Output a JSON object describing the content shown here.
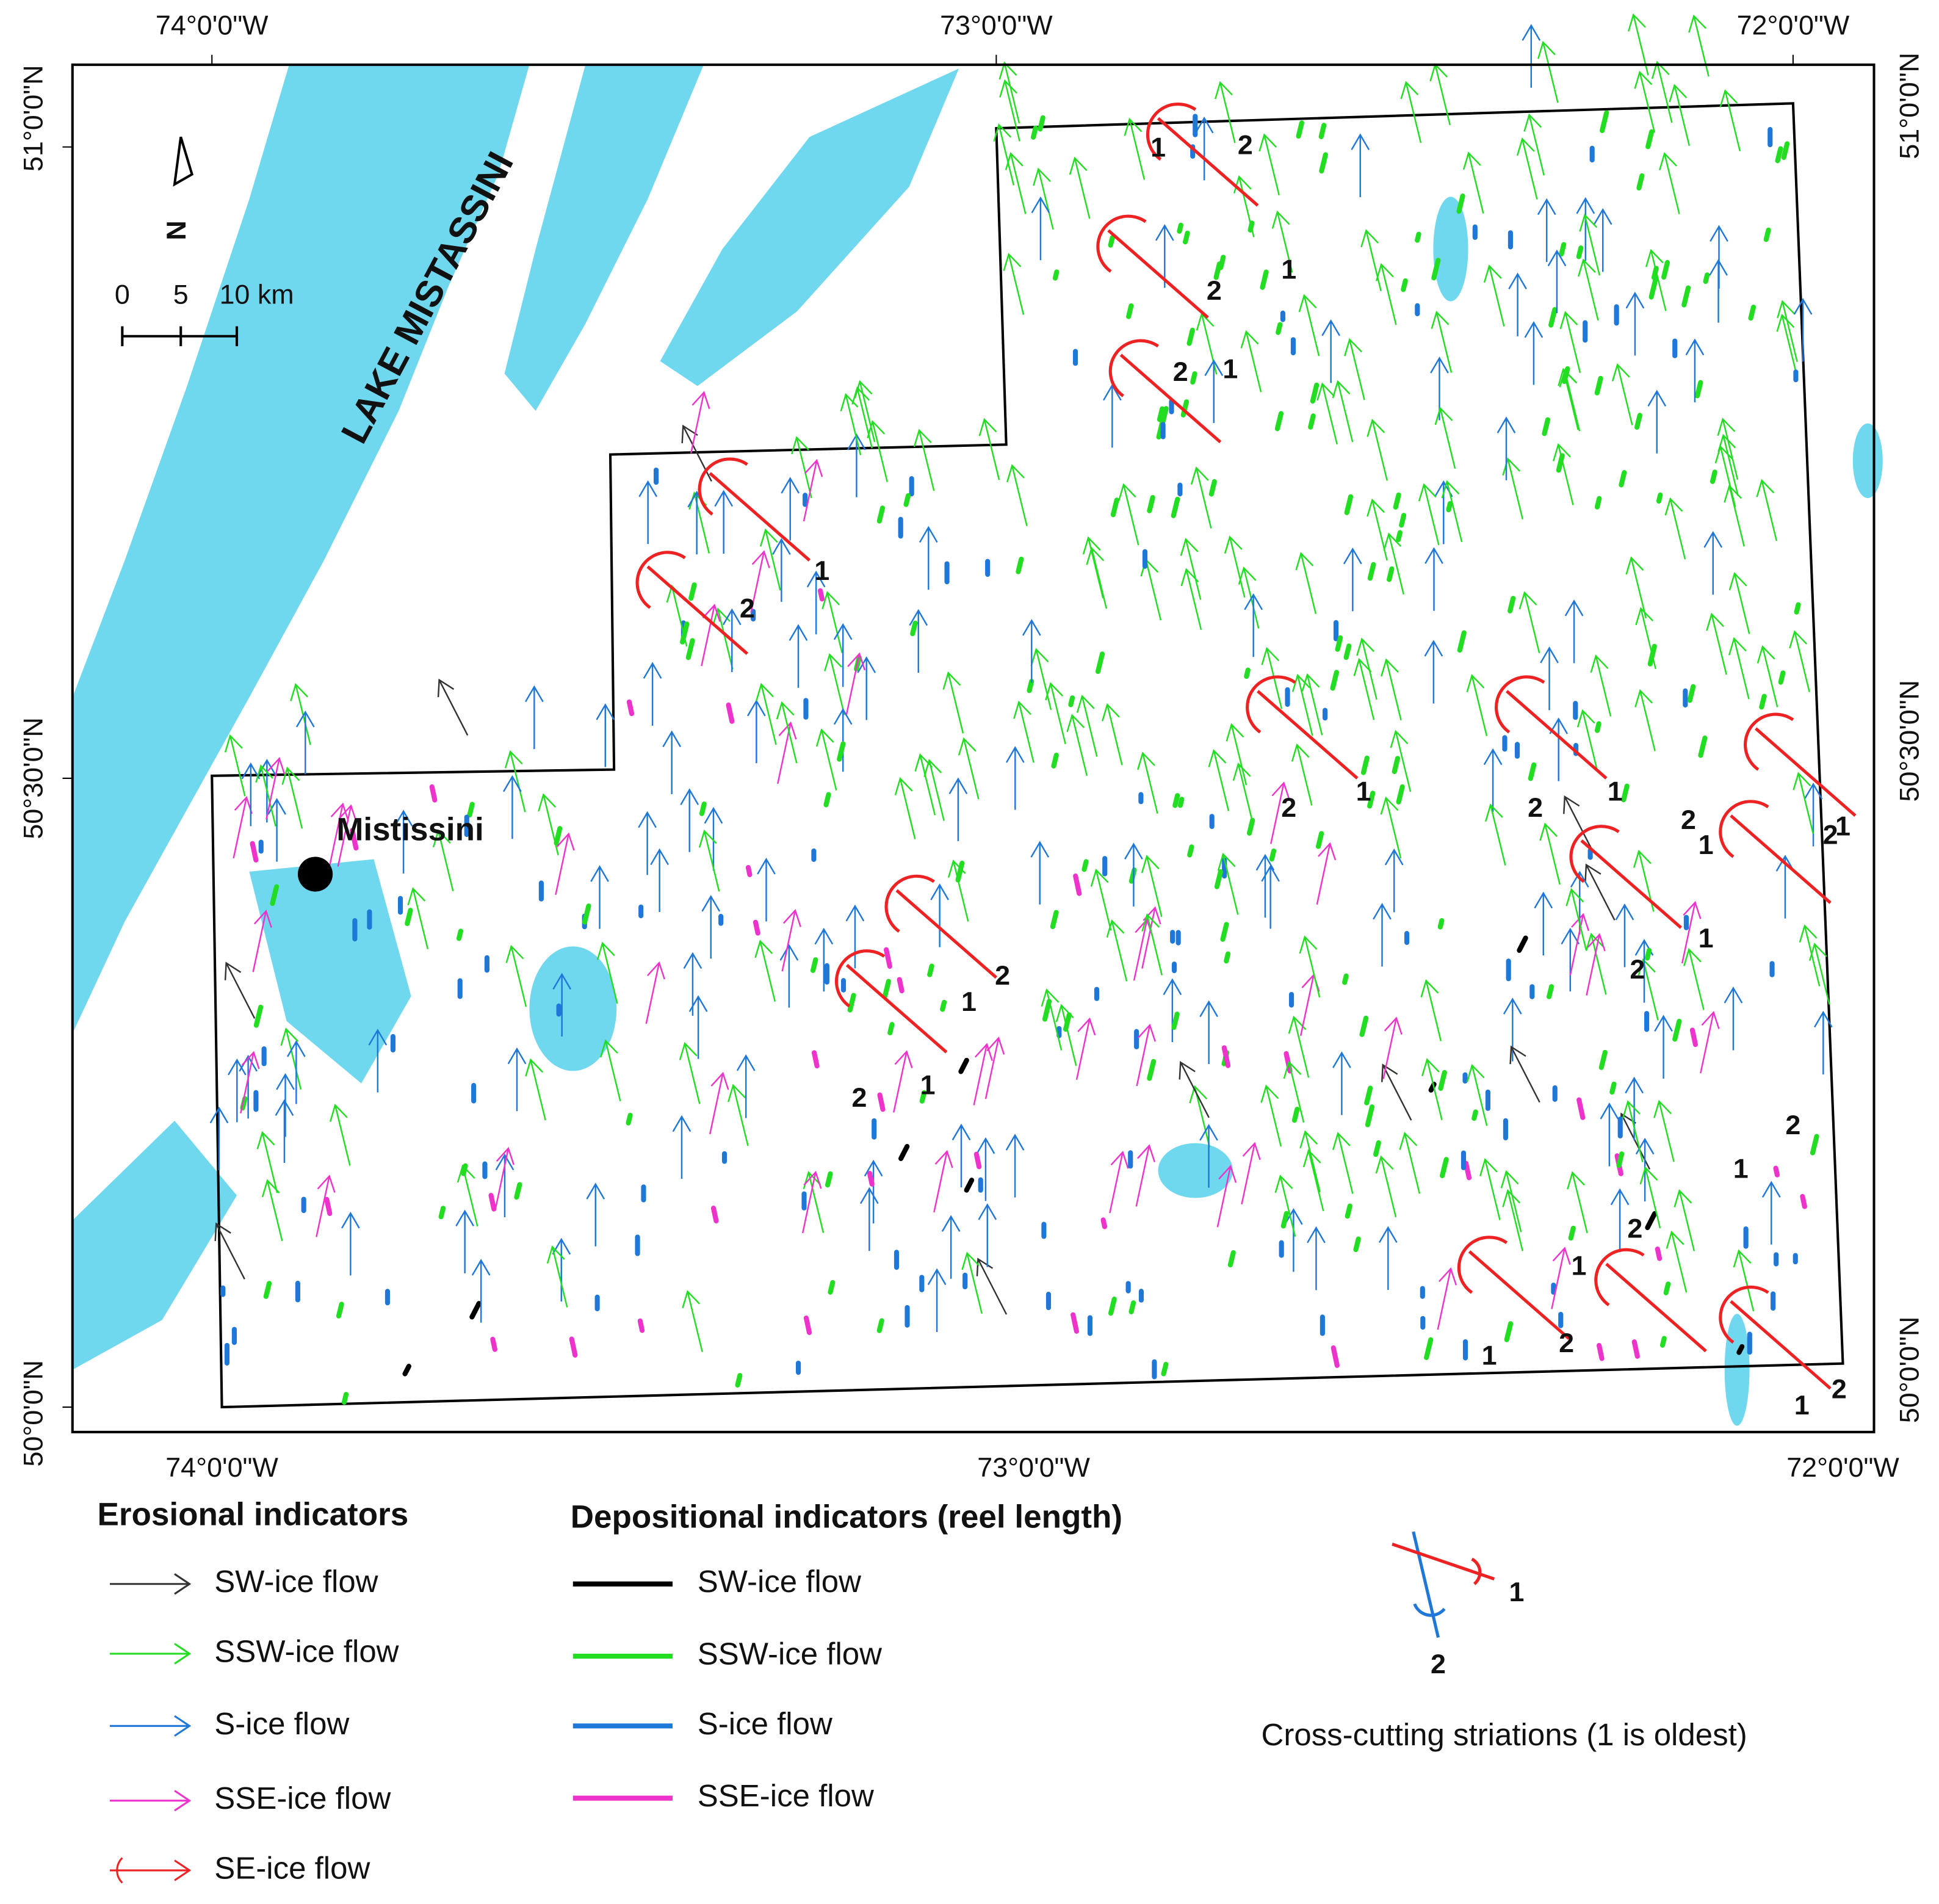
{
  "map": {
    "graticule": {
      "top": [
        "74°0'0\"W",
        "73°0'0\"W",
        "72°0'0\"W"
      ],
      "bottom": [
        "74°0'0\"W",
        "73°0'0\"W",
        "72°0'0\"W"
      ],
      "left": [
        "51°0'0\"N",
        "50°30'0\"N",
        "50°0'0\"N"
      ],
      "right": [
        "51°0'0\"N",
        "50°30'0\"N",
        "50°0'0\"N"
      ]
    },
    "north_arrow": "N",
    "scale_bar": [
      "0",
      "5",
      "10 km"
    ],
    "lake_label": "LAKE MISTASSINI",
    "town": "Mistissini",
    "crosscut_labels": [
      "1",
      "2",
      "1",
      "2",
      "2",
      "1",
      "2",
      "1",
      "1",
      "2",
      "1",
      "2",
      "2",
      "1",
      "1",
      "2",
      "2",
      "1",
      "1",
      "2",
      "2",
      "1",
      "2",
      "1",
      "2",
      "1",
      "1",
      "2",
      "1",
      "2"
    ]
  },
  "legend": {
    "erosional": {
      "title": "Erosional indicators",
      "items": [
        {
          "label": "SW-ice flow",
          "color": "#333333"
        },
        {
          "label": "SSW-ice flow",
          "color": "#22dd22"
        },
        {
          "label": "S-ice flow",
          "color": "#1f78d8"
        },
        {
          "label": "SSE-ice flow",
          "color": "#ee33cc"
        },
        {
          "label": "SE-ice flow",
          "color": "#ee2222"
        }
      ]
    },
    "depositional": {
      "title": "Depositional indicators (reel length)",
      "items": [
        {
          "label": "SW-ice flow",
          "color": "#000000"
        },
        {
          "label": "SSW-ice flow",
          "color": "#22dd22"
        },
        {
          "label": "S-ice flow",
          "color": "#1f78d8"
        },
        {
          "label": "SSE-ice flow",
          "color": "#ee33cc"
        }
      ]
    },
    "crosscut": {
      "labels": [
        "1",
        "2"
      ],
      "caption": "Cross-cutting striations (1 is oldest)"
    }
  }
}
